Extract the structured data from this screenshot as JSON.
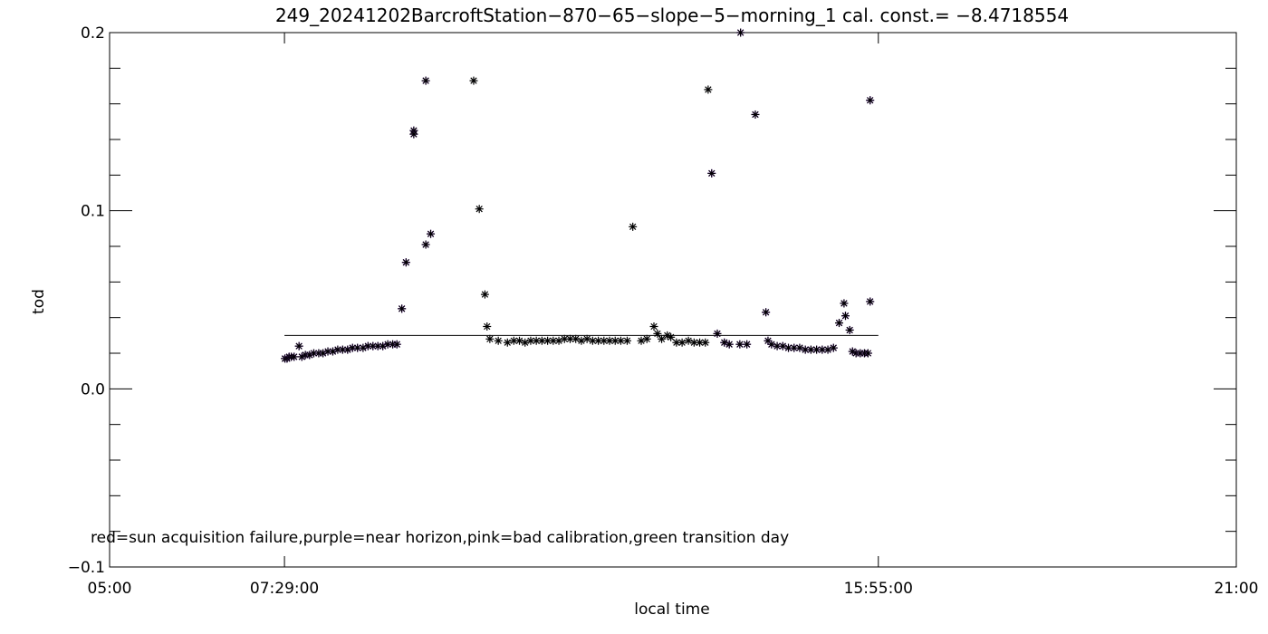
{
  "chart_data": {
    "type": "scatter",
    "title": "249_20241202BarcroftStation−870−65−slope−5−morning_1 cal. const.= −8.4718554",
    "xlabel": "local time",
    "ylabel": "tod",
    "xlim_hours": [
      5,
      21
    ],
    "ylim": [
      -0.1,
      0.2
    ],
    "x_ticks": [
      {
        "value": 5.0,
        "label": "05:00"
      },
      {
        "value": 7.4833,
        "label": "07:29:00"
      },
      {
        "value": 15.9167,
        "label": "15:55:00"
      },
      {
        "value": 21.0,
        "label": "21:00"
      }
    ],
    "y_ticks": [
      {
        "value": 0.2,
        "label": "0.2"
      },
      {
        "value": 0.1,
        "label": "0.1"
      },
      {
        "value": 0.0,
        "label": "0.0"
      },
      {
        "value": -0.1,
        "label": "−0.1"
      }
    ],
    "reference_line": {
      "y": 0.03,
      "x_start": 7.4833,
      "x_end": 15.9167
    },
    "annotation": "red=sun acquisition failure,purple=near horizon,pink=bad calibration,green transition day",
    "colors": {
      "normal": "#000000",
      "near_horizon": "#9b30ff",
      "axes": "#000000"
    },
    "series": [
      {
        "category": "near_horizon",
        "points": [
          [
            7.49,
            0.017
          ],
          [
            7.52,
            0.017
          ],
          [
            7.55,
            0.018
          ],
          [
            7.58,
            0.018
          ],
          [
            7.62,
            0.018
          ],
          [
            7.69,
            0.024
          ],
          [
            7.73,
            0.018
          ],
          [
            7.78,
            0.019
          ],
          [
            7.84,
            0.019
          ],
          [
            7.9,
            0.02
          ],
          [
            7.97,
            0.02
          ],
          [
            8.03,
            0.02
          ],
          [
            8.1,
            0.021
          ],
          [
            8.17,
            0.021
          ],
          [
            8.24,
            0.022
          ],
          [
            8.31,
            0.022
          ],
          [
            8.38,
            0.022
          ],
          [
            8.45,
            0.023
          ],
          [
            8.52,
            0.023
          ],
          [
            8.6,
            0.023
          ],
          [
            8.67,
            0.024
          ],
          [
            8.74,
            0.024
          ],
          [
            8.81,
            0.024
          ],
          [
            8.88,
            0.024
          ],
          [
            8.95,
            0.025
          ],
          [
            9.02,
            0.025
          ],
          [
            9.08,
            0.025
          ],
          [
            9.15,
            0.045
          ],
          [
            9.21,
            0.071
          ],
          [
            9.32,
            0.145
          ],
          [
            9.32,
            0.143
          ],
          [
            9.49,
            0.173
          ],
          [
            9.49,
            0.081
          ],
          [
            9.56,
            0.087
          ],
          [
            13.96,
            0.2
          ],
          [
            13.55,
            0.121
          ],
          [
            13.63,
            0.031
          ],
          [
            13.73,
            0.026
          ],
          [
            13.8,
            0.025
          ],
          [
            13.95,
            0.025
          ],
          [
            14.05,
            0.025
          ],
          [
            14.17,
            0.154
          ],
          [
            14.32,
            0.043
          ],
          [
            14.35,
            0.027
          ],
          [
            14.4,
            0.025
          ],
          [
            14.48,
            0.024
          ],
          [
            14.56,
            0.024
          ],
          [
            14.64,
            0.023
          ],
          [
            14.72,
            0.023
          ],
          [
            14.8,
            0.023
          ],
          [
            14.88,
            0.022
          ],
          [
            14.96,
            0.022
          ],
          [
            15.04,
            0.022
          ],
          [
            15.12,
            0.022
          ],
          [
            15.2,
            0.022
          ],
          [
            15.28,
            0.023
          ],
          [
            15.36,
            0.037
          ],
          [
            15.43,
            0.048
          ],
          [
            15.45,
            0.041
          ],
          [
            15.51,
            0.033
          ],
          [
            15.55,
            0.021
          ],
          [
            15.6,
            0.02
          ],
          [
            15.66,
            0.02
          ],
          [
            15.72,
            0.02
          ],
          [
            15.77,
            0.02
          ],
          [
            15.8,
            0.049
          ],
          [
            15.8,
            0.162
          ]
        ]
      },
      {
        "category": "normal",
        "points": [
          [
            10.17,
            0.173
          ],
          [
            10.25,
            0.101
          ],
          [
            10.33,
            0.053
          ],
          [
            10.36,
            0.035
          ],
          [
            10.4,
            0.028
          ],
          [
            10.52,
            0.027
          ],
          [
            10.65,
            0.026
          ],
          [
            10.74,
            0.027
          ],
          [
            10.82,
            0.027
          ],
          [
            10.9,
            0.026
          ],
          [
            10.98,
            0.027
          ],
          [
            11.06,
            0.027
          ],
          [
            11.14,
            0.027
          ],
          [
            11.22,
            0.027
          ],
          [
            11.3,
            0.027
          ],
          [
            11.38,
            0.027
          ],
          [
            11.46,
            0.028
          ],
          [
            11.54,
            0.028
          ],
          [
            11.62,
            0.028
          ],
          [
            11.7,
            0.027
          ],
          [
            11.78,
            0.028
          ],
          [
            11.86,
            0.027
          ],
          [
            11.94,
            0.027
          ],
          [
            12.02,
            0.027
          ],
          [
            12.1,
            0.027
          ],
          [
            12.18,
            0.027
          ],
          [
            12.26,
            0.027
          ],
          [
            12.35,
            0.027
          ],
          [
            12.43,
            0.091
          ],
          [
            12.55,
            0.027
          ],
          [
            12.63,
            0.028
          ],
          [
            12.73,
            0.035
          ],
          [
            12.78,
            0.031
          ],
          [
            12.84,
            0.028
          ],
          [
            12.92,
            0.03
          ],
          [
            12.97,
            0.029
          ],
          [
            13.05,
            0.026
          ],
          [
            13.13,
            0.026
          ],
          [
            13.22,
            0.027
          ],
          [
            13.3,
            0.026
          ],
          [
            13.38,
            0.026
          ],
          [
            13.46,
            0.026
          ],
          [
            13.5,
            0.168
          ]
        ]
      }
    ]
  }
}
